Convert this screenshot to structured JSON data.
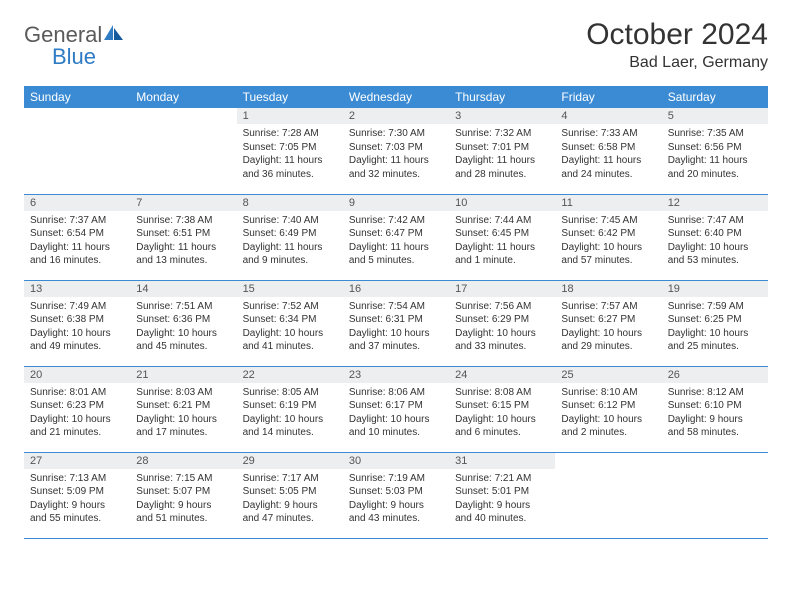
{
  "logo": {
    "text1": "General",
    "text2": "Blue"
  },
  "title": "October 2024",
  "location": "Bad Laer, Germany",
  "colors": {
    "header_bg": "#3b8bd4",
    "header_text": "#ffffff",
    "daynum_bg": "#eceef0",
    "border": "#3b8bd4",
    "logo_gray": "#5a5a5a",
    "logo_blue": "#2f7cc4"
  },
  "weekdays": [
    "Sunday",
    "Monday",
    "Tuesday",
    "Wednesday",
    "Thursday",
    "Friday",
    "Saturday"
  ],
  "weeks": [
    [
      null,
      null,
      {
        "n": "1",
        "sr": "7:28 AM",
        "ss": "7:05 PM",
        "dl": "11 hours and 36 minutes."
      },
      {
        "n": "2",
        "sr": "7:30 AM",
        "ss": "7:03 PM",
        "dl": "11 hours and 32 minutes."
      },
      {
        "n": "3",
        "sr": "7:32 AM",
        "ss": "7:01 PM",
        "dl": "11 hours and 28 minutes."
      },
      {
        "n": "4",
        "sr": "7:33 AM",
        "ss": "6:58 PM",
        "dl": "11 hours and 24 minutes."
      },
      {
        "n": "5",
        "sr": "7:35 AM",
        "ss": "6:56 PM",
        "dl": "11 hours and 20 minutes."
      }
    ],
    [
      {
        "n": "6",
        "sr": "7:37 AM",
        "ss": "6:54 PM",
        "dl": "11 hours and 16 minutes."
      },
      {
        "n": "7",
        "sr": "7:38 AM",
        "ss": "6:51 PM",
        "dl": "11 hours and 13 minutes."
      },
      {
        "n": "8",
        "sr": "7:40 AM",
        "ss": "6:49 PM",
        "dl": "11 hours and 9 minutes."
      },
      {
        "n": "9",
        "sr": "7:42 AM",
        "ss": "6:47 PM",
        "dl": "11 hours and 5 minutes."
      },
      {
        "n": "10",
        "sr": "7:44 AM",
        "ss": "6:45 PM",
        "dl": "11 hours and 1 minute."
      },
      {
        "n": "11",
        "sr": "7:45 AM",
        "ss": "6:42 PM",
        "dl": "10 hours and 57 minutes."
      },
      {
        "n": "12",
        "sr": "7:47 AM",
        "ss": "6:40 PM",
        "dl": "10 hours and 53 minutes."
      }
    ],
    [
      {
        "n": "13",
        "sr": "7:49 AM",
        "ss": "6:38 PM",
        "dl": "10 hours and 49 minutes."
      },
      {
        "n": "14",
        "sr": "7:51 AM",
        "ss": "6:36 PM",
        "dl": "10 hours and 45 minutes."
      },
      {
        "n": "15",
        "sr": "7:52 AM",
        "ss": "6:34 PM",
        "dl": "10 hours and 41 minutes."
      },
      {
        "n": "16",
        "sr": "7:54 AM",
        "ss": "6:31 PM",
        "dl": "10 hours and 37 minutes."
      },
      {
        "n": "17",
        "sr": "7:56 AM",
        "ss": "6:29 PM",
        "dl": "10 hours and 33 minutes."
      },
      {
        "n": "18",
        "sr": "7:57 AM",
        "ss": "6:27 PM",
        "dl": "10 hours and 29 minutes."
      },
      {
        "n": "19",
        "sr": "7:59 AM",
        "ss": "6:25 PM",
        "dl": "10 hours and 25 minutes."
      }
    ],
    [
      {
        "n": "20",
        "sr": "8:01 AM",
        "ss": "6:23 PM",
        "dl": "10 hours and 21 minutes."
      },
      {
        "n": "21",
        "sr": "8:03 AM",
        "ss": "6:21 PM",
        "dl": "10 hours and 17 minutes."
      },
      {
        "n": "22",
        "sr": "8:05 AM",
        "ss": "6:19 PM",
        "dl": "10 hours and 14 minutes."
      },
      {
        "n": "23",
        "sr": "8:06 AM",
        "ss": "6:17 PM",
        "dl": "10 hours and 10 minutes."
      },
      {
        "n": "24",
        "sr": "8:08 AM",
        "ss": "6:15 PM",
        "dl": "10 hours and 6 minutes."
      },
      {
        "n": "25",
        "sr": "8:10 AM",
        "ss": "6:12 PM",
        "dl": "10 hours and 2 minutes."
      },
      {
        "n": "26",
        "sr": "8:12 AM",
        "ss": "6:10 PM",
        "dl": "9 hours and 58 minutes."
      }
    ],
    [
      {
        "n": "27",
        "sr": "7:13 AM",
        "ss": "5:09 PM",
        "dl": "9 hours and 55 minutes."
      },
      {
        "n": "28",
        "sr": "7:15 AM",
        "ss": "5:07 PM",
        "dl": "9 hours and 51 minutes."
      },
      {
        "n": "29",
        "sr": "7:17 AM",
        "ss": "5:05 PM",
        "dl": "9 hours and 47 minutes."
      },
      {
        "n": "30",
        "sr": "7:19 AM",
        "ss": "5:03 PM",
        "dl": "9 hours and 43 minutes."
      },
      {
        "n": "31",
        "sr": "7:21 AM",
        "ss": "5:01 PM",
        "dl": "9 hours and 40 minutes."
      },
      null,
      null
    ]
  ],
  "labels": {
    "sunrise": "Sunrise: ",
    "sunset": "Sunset: ",
    "daylight": "Daylight: "
  }
}
